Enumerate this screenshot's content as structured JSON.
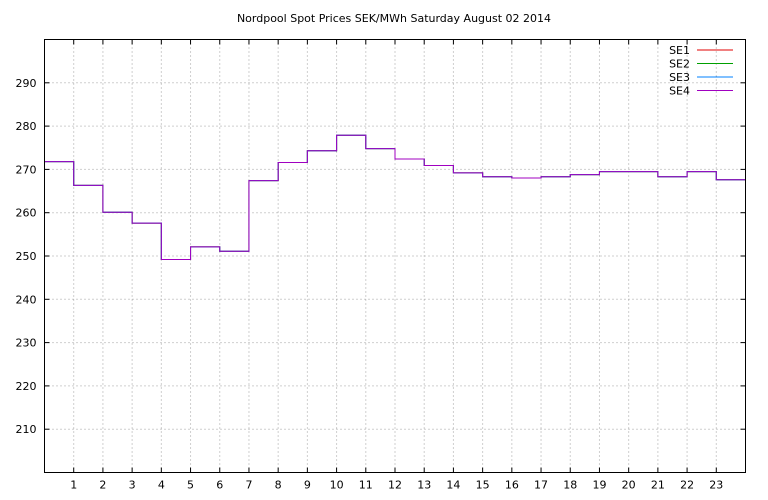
{
  "chart_data": {
    "type": "line",
    "step": true,
    "title": "Nordpool Spot Prices SEK/MWh Saturday August 02 2014",
    "xlabel": "",
    "ylabel": "",
    "xlim": [
      0,
      24
    ],
    "ylim": [
      200,
      300
    ],
    "x_ticks": [
      1,
      2,
      3,
      4,
      5,
      6,
      7,
      8,
      9,
      10,
      11,
      12,
      13,
      14,
      15,
      16,
      17,
      18,
      19,
      20,
      21,
      22,
      23
    ],
    "y_ticks": [
      210,
      220,
      230,
      240,
      250,
      260,
      270,
      280,
      290
    ],
    "grid": true,
    "legend_position": "top-right",
    "hours": [
      0,
      1,
      2,
      3,
      4,
      5,
      6,
      7,
      8,
      9,
      10,
      11,
      12,
      13,
      14,
      15,
      16,
      17,
      18,
      19,
      20,
      21,
      22,
      23
    ],
    "series": [
      {
        "name": "SE1",
        "color": "#e00000",
        "values": [
          271.8,
          266.3,
          260.1,
          257.6,
          249.2,
          252.1,
          251.1,
          267.4,
          271.6,
          274.3,
          277.9,
          274.8,
          272.4,
          270.9,
          269.2,
          268.3,
          268.0,
          268.3,
          268.8,
          269.5,
          269.5,
          268.3,
          269.5,
          267.6
        ]
      },
      {
        "name": "SE2",
        "color": "#00a000",
        "values": [
          271.8,
          266.3,
          260.1,
          257.6,
          249.2,
          252.1,
          251.1,
          267.4,
          271.6,
          274.3,
          277.9,
          274.8,
          272.4,
          270.9,
          269.2,
          268.3,
          268.0,
          268.3,
          268.8,
          269.5,
          269.5,
          268.3,
          269.5,
          267.6
        ]
      },
      {
        "name": "SE3",
        "color": "#0080ff",
        "values": [
          271.8,
          266.3,
          260.1,
          257.6,
          249.2,
          252.1,
          251.1,
          267.4,
          271.6,
          274.3,
          277.9,
          274.8,
          272.4,
          270.9,
          269.2,
          268.3,
          268.0,
          268.3,
          268.8,
          269.5,
          269.5,
          268.3,
          269.5,
          267.6
        ]
      },
      {
        "name": "SE4",
        "color": "#a000c0",
        "values": [
          271.8,
          266.3,
          260.1,
          257.6,
          249.2,
          252.1,
          251.1,
          267.4,
          271.6,
          274.3,
          277.9,
          274.8,
          272.4,
          270.9,
          269.2,
          268.3,
          268.0,
          268.3,
          268.8,
          269.5,
          269.5,
          268.3,
          269.5,
          267.6
        ]
      }
    ]
  }
}
